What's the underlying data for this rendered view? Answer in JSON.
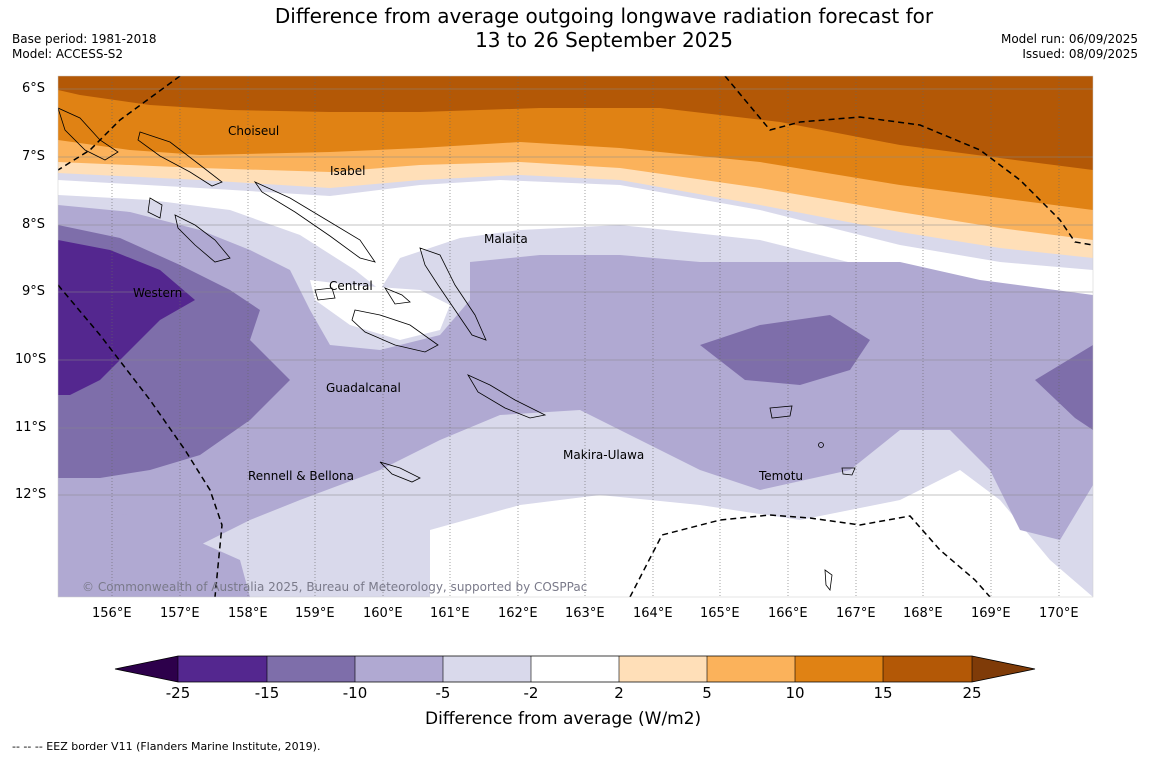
{
  "title_line1": "Difference from average outgoing longwave radiation forecast for",
  "title_line2": "13 to 26 September 2025",
  "base_period": "Base period: 1981-2018",
  "model": "Model: ACCESS-S2",
  "model_run": "Model run: 06/09/2025",
  "issued": "Issued: 08/09/2025",
  "copyright": "© Commonwealth of Australia 2025, Bureau of Meteorology, supported by COSPPac",
  "lat_labels": [
    "6°S",
    "7°S",
    "8°S",
    "9°S",
    "10°S",
    "11°S",
    "12°S"
  ],
  "lon_labels": [
    "156°E",
    "157°E",
    "158°E",
    "159°E",
    "160°E",
    "161°E",
    "162°E",
    "163°E",
    "164°E",
    "165°E",
    "166°E",
    "167°E",
    "168°E",
    "169°E",
    "170°E"
  ],
  "places": {
    "choiseul": "Choiseul",
    "isabel": "Isabel",
    "malaita": "Malaita",
    "western": "Western",
    "central": "Central",
    "guadalcanal": "Guadalcanal",
    "makira": "Makira-Ulawa",
    "rennell": "Rennell & Bellona",
    "temotu": "Temotu"
  },
  "colorbar": {
    "ticks": [
      "-25",
      "-15",
      "-10",
      "-5",
      "-2",
      "2",
      "5",
      "10",
      "15",
      "25"
    ],
    "colors": [
      "#54278f",
      "#7e6eaa",
      "#b0a9d2",
      "#d9d9eb",
      "#ffffff",
      "#ffdfb8",
      "#fbb25b",
      "#e08214",
      "#b35806"
    ],
    "under_color": "#2d004b",
    "over_color": "#7f3b08",
    "label": "Difference from average (W/m2)"
  },
  "footnote": "--  --  -- EEZ border V11 (Flanders Marine Institute, 2019)."
}
